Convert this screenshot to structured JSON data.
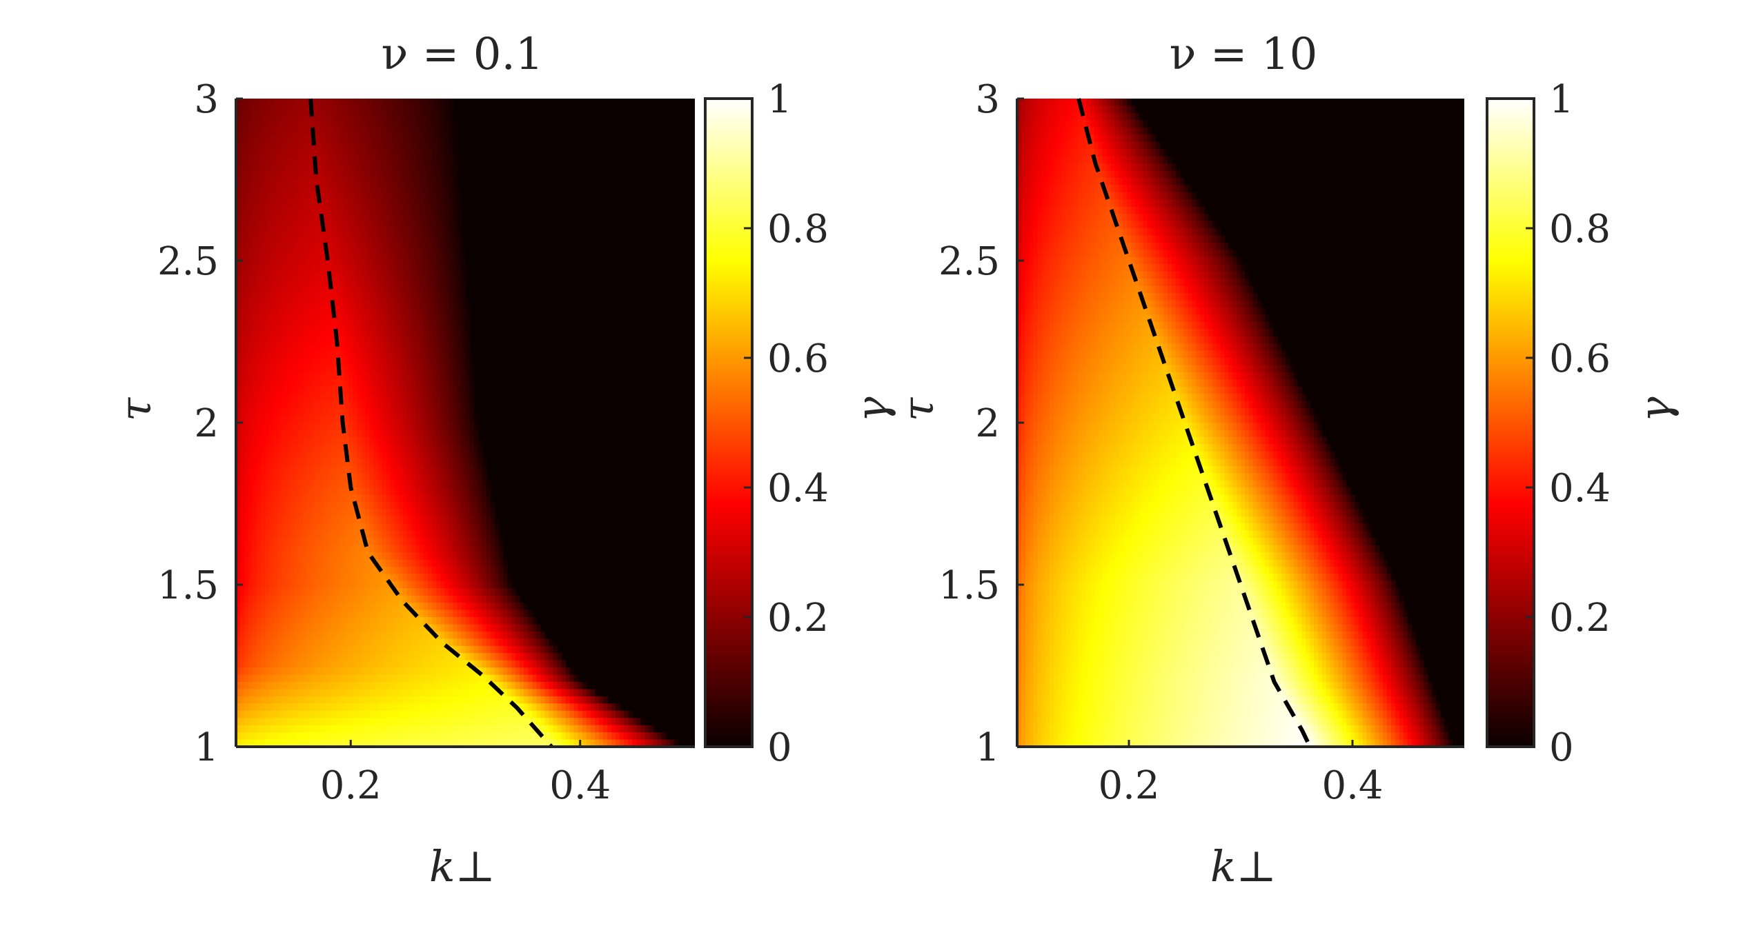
{
  "chart_data": [
    {
      "type": "heatmap",
      "title": "ν = 0.1",
      "xlabel": "k⊥",
      "ylabel": "τ",
      "colorbar_label": "γ",
      "colormap": "hot",
      "xlim": [
        0.1,
        0.5
      ],
      "ylim": [
        1,
        3
      ],
      "clim": [
        0,
        1
      ],
      "xticks": [
        0.2,
        0.4
      ],
      "xtick_labels": [
        "0.2",
        "0.4"
      ],
      "yticks": [
        1,
        1.5,
        2,
        2.5,
        3
      ],
      "ytick_labels": [
        "1",
        "1.5",
        "2",
        "2.5",
        "3"
      ],
      "cticks": [
        0,
        0.2,
        0.4,
        0.6,
        0.8,
        1
      ],
      "ctick_labels": [
        "0",
        "0.2",
        "0.4",
        "0.6",
        "0.8",
        "1"
      ],
      "cutoff_k": [
        [
          1.0,
          0.49
        ],
        [
          1.2,
          0.4
        ],
        [
          1.5,
          0.34
        ],
        [
          2.0,
          0.31
        ],
        [
          2.5,
          0.3
        ],
        [
          3.0,
          0.29
        ]
      ],
      "gamma_max": [
        [
          1.0,
          0.85
        ],
        [
          1.25,
          0.72
        ],
        [
          1.5,
          0.6
        ],
        [
          2.0,
          0.45
        ],
        [
          2.5,
          0.32
        ],
        [
          3.0,
          0.22
        ]
      ],
      "gamma_floor": [
        [
          1.0,
          0.72
        ],
        [
          1.25,
          0.42
        ],
        [
          1.5,
          0.32
        ],
        [
          2.0,
          0.28
        ],
        [
          2.5,
          0.2
        ],
        [
          3.0,
          0.13
        ]
      ],
      "max_growth_line": {
        "style": "dashed",
        "color": "#000000",
        "points": [
          [
            0.165,
            3.0
          ],
          [
            0.17,
            2.75
          ],
          [
            0.18,
            2.5
          ],
          [
            0.188,
            2.25
          ],
          [
            0.193,
            2.0
          ],
          [
            0.2,
            1.8
          ],
          [
            0.215,
            1.6
          ],
          [
            0.245,
            1.45
          ],
          [
            0.28,
            1.32
          ],
          [
            0.315,
            1.22
          ],
          [
            0.345,
            1.12
          ],
          [
            0.375,
            1.0
          ]
        ]
      }
    },
    {
      "type": "heatmap",
      "title": "ν = 10",
      "xlabel": "k⊥",
      "ylabel": "τ",
      "colorbar_label": "γ",
      "colormap": "hot",
      "xlim": [
        0.1,
        0.5
      ],
      "ylim": [
        1,
        3
      ],
      "clim": [
        0,
        1
      ],
      "xticks": [
        0.2,
        0.4
      ],
      "xtick_labels": [
        "0.2",
        "0.4"
      ],
      "yticks": [
        1,
        1.5,
        2,
        2.5,
        3
      ],
      "ytick_labels": [
        "1",
        "1.5",
        "2",
        "2.5",
        "3"
      ],
      "cticks": [
        0,
        0.2,
        0.4,
        0.6,
        0.8,
        1
      ],
      "ctick_labels": [
        "0",
        "0.2",
        "0.4",
        "0.6",
        "0.8",
        "1"
      ],
      "cutoff_k": [
        [
          1.0,
          0.49
        ],
        [
          1.5,
          0.44
        ],
        [
          2.0,
          0.37
        ],
        [
          2.5,
          0.3
        ],
        [
          3.0,
          0.2
        ]
      ],
      "gamma_max": [
        [
          1.0,
          1.0
        ],
        [
          1.5,
          0.9
        ],
        [
          2.0,
          0.72
        ],
        [
          2.5,
          0.55
        ],
        [
          3.0,
          0.38
        ]
      ],
      "gamma_floor": [
        [
          1.0,
          0.55
        ],
        [
          1.5,
          0.5
        ],
        [
          2.0,
          0.4
        ],
        [
          2.5,
          0.3
        ],
        [
          3.0,
          0.2
        ]
      ],
      "max_growth_line": {
        "style": "dashed",
        "color": "#000000",
        "points": [
          [
            0.155,
            3.0
          ],
          [
            0.17,
            2.8
          ],
          [
            0.19,
            2.6
          ],
          [
            0.21,
            2.4
          ],
          [
            0.23,
            2.2
          ],
          [
            0.25,
            2.0
          ],
          [
            0.27,
            1.8
          ],
          [
            0.29,
            1.6
          ],
          [
            0.31,
            1.4
          ],
          [
            0.33,
            1.2
          ],
          [
            0.355,
            1.05
          ],
          [
            0.362,
            1.0
          ]
        ]
      }
    }
  ]
}
